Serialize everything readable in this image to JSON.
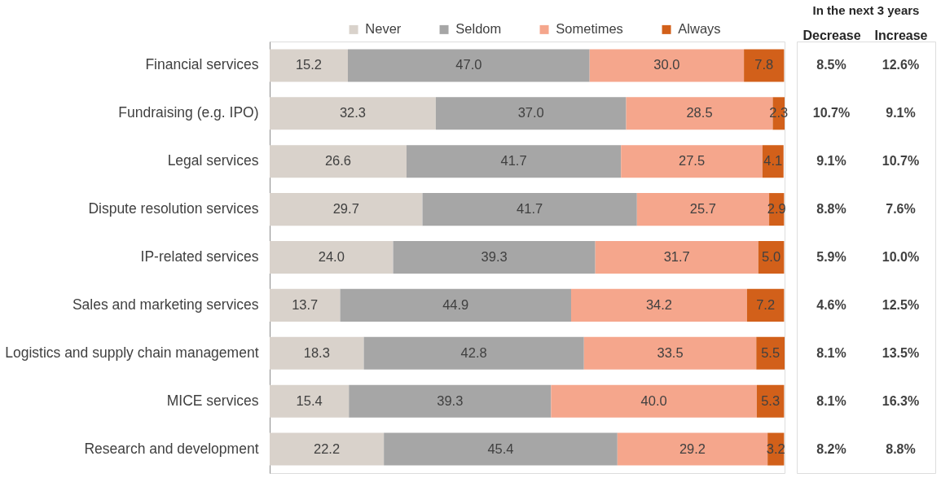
{
  "chart_data": [
    {
      "type": "bar",
      "orientation": "horizontal",
      "stacked": true,
      "legend": "top",
      "tick_labels": "y",
      "categories": [
        "Financial services",
        "Fundraising (e.g. IPO)",
        "Legal services",
        "Dispute resolution services",
        "IP-related services",
        "Sales and marketing services",
        "Logistics and supply chain management",
        "MICE services",
        "Research and development"
      ],
      "xlim": [
        0,
        100.1
      ],
      "series": [
        {
          "name": "Never",
          "color": "#d9d2cb",
          "values": [
            15.2,
            32.3,
            26.6,
            29.7,
            24.0,
            13.7,
            18.3,
            15.4,
            22.2
          ],
          "value_labels": [
            "15.2",
            "32.3",
            "26.6",
            "29.7",
            "24.0",
            "13.7",
            "18.3",
            "15.4",
            "22.2"
          ]
        },
        {
          "name": "Seldom",
          "color": "#a6a6a6",
          "values": [
            47.0,
            37.0,
            41.7,
            41.7,
            39.3,
            44.9,
            42.8,
            39.3,
            45.4
          ],
          "value_labels": [
            "47.0",
            "37.0",
            "41.7",
            "41.7",
            "39.3",
            "44.9",
            "42.8",
            "39.3",
            "45.4"
          ]
        },
        {
          "name": "Sometimes",
          "color": "#f5a68c",
          "values": [
            30.0,
            28.5,
            27.5,
            25.7,
            31.7,
            34.2,
            33.5,
            40.0,
            29.2
          ],
          "value_labels": [
            "30.0",
            "28.5",
            "27.5",
            "25.7",
            "31.7",
            "34.2",
            "33.5",
            "40.0",
            "29.2"
          ]
        },
        {
          "name": "Always",
          "color": "#d2601a",
          "values": [
            7.8,
            2.3,
            4.1,
            2.9,
            5.0,
            7.2,
            5.5,
            5.3,
            3.2
          ],
          "value_labels": [
            "7.8",
            "2.3",
            "4.1",
            "2.9",
            "5.0",
            "7.2",
            "5.5",
            "5.3",
            "3.2"
          ]
        }
      ]
    },
    {
      "type": "heatmap",
      "title": "In the next 3 years",
      "tick_labels": "x",
      "categories": [
        "Decrease",
        "Increase"
      ],
      "y_categories": [
        null,
        null,
        null,
        null,
        null,
        null,
        null,
        null,
        null
      ],
      "cells": [
        [
          8.5,
          12.6
        ],
        [
          10.7,
          9.1
        ],
        [
          9.1,
          10.7
        ],
        [
          8.8,
          7.6
        ],
        [
          5.9,
          10.0
        ],
        [
          4.6,
          12.5
        ],
        [
          8.1,
          13.5
        ],
        [
          8.1,
          16.3
        ],
        [
          8.2,
          8.8
        ]
      ],
      "cell_labels": [
        [
          "8.5%",
          "12.6%"
        ],
        [
          "10.7%",
          "9.1%"
        ],
        [
          "9.1%",
          "10.7%"
        ],
        [
          "8.8%",
          "7.6%"
        ],
        [
          "5.9%",
          "10.0%"
        ],
        [
          "4.6%",
          "12.5%"
        ],
        [
          "8.1%",
          "13.5%"
        ],
        [
          "8.1%",
          "16.3%"
        ],
        [
          "8.2%",
          "8.8%"
        ]
      ]
    }
  ]
}
